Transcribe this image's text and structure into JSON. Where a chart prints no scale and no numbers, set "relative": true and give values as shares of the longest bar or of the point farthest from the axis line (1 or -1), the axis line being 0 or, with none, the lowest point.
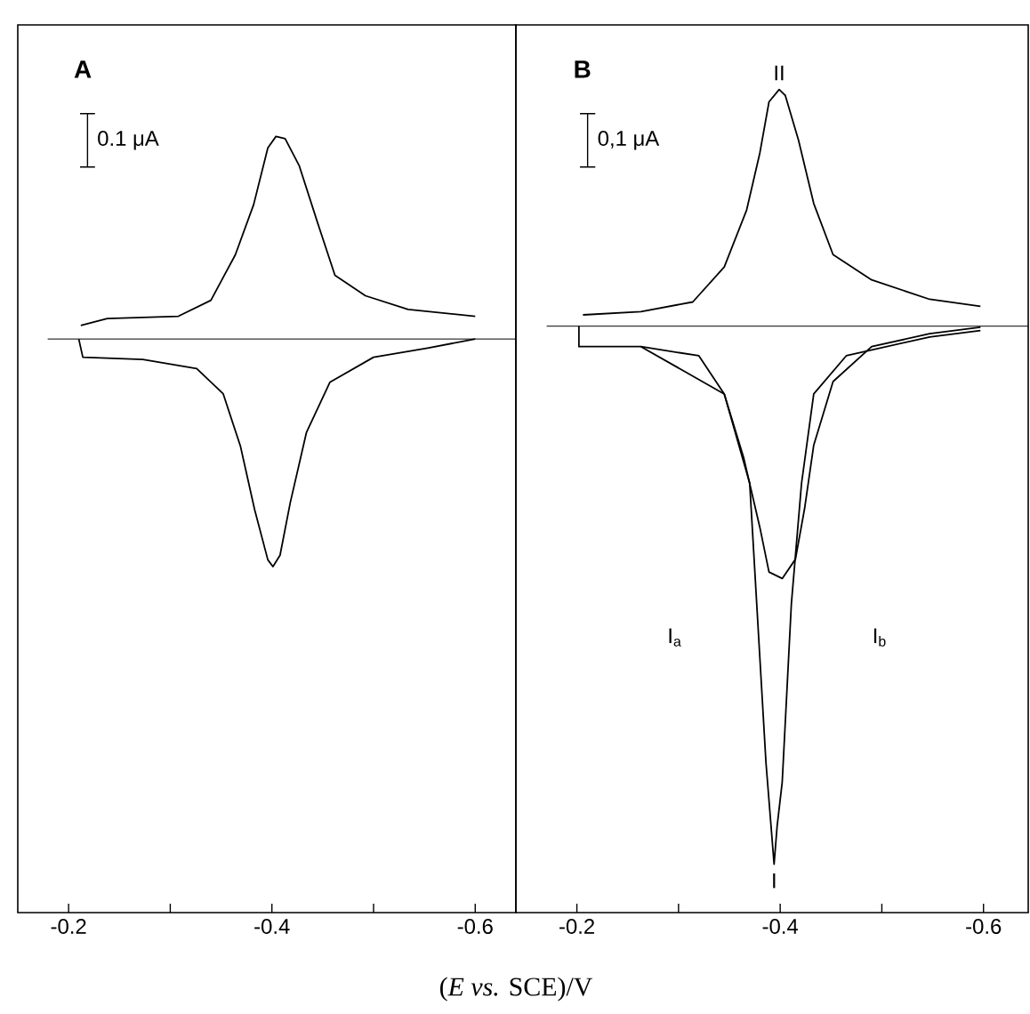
{
  "chart_data": [
    {
      "type": "line",
      "relative": true,
      "xlabel": "(*E vs.* SCE)/V",
      "xlim": [
        -0.15,
        -0.64
      ],
      "xticks": [
        -0.2,
        -0.4,
        -0.6
      ],
      "series": [
        {
          "color": "#000000",
          "x": [
            -0.6,
            -0.534,
            -0.492,
            -0.462,
            -0.445,
            -0.427,
            -0.413,
            -0.404,
            -0.396,
            -0.382,
            -0.364,
            -0.34,
            -0.308,
            -0.238,
            -0.212
          ],
          "values": [
            0.1,
            0.13,
            0.19,
            0.28,
            0.51,
            0.76,
            0.88,
            0.89,
            0.84,
            0.59,
            0.37,
            0.17,
            0.1,
            0.09,
            0.06
          ]
        },
        {
          "color": "#000000",
          "x": [
            -0.21,
            -0.214,
            -0.273,
            -0.326,
            -0.352,
            -0.369,
            -0.383,
            -0.396,
            -0.401,
            -0.408,
            -0.418,
            -0.434,
            -0.457,
            -0.5,
            -0.553,
            -0.6
          ],
          "values": [
            0,
            -0.08,
            -0.09,
            -0.13,
            -0.24,
            -0.47,
            -0.75,
            -0.97,
            -1.0,
            -0.95,
            -0.72,
            -0.41,
            -0.19,
            -0.08,
            -0.04,
            0
          ]
        }
      ],
      "ref_lines": [
        {
          "axis": "y",
          "value": 0
        }
      ],
      "annotations": [
        "A",
        "0.1 μA"
      ]
    },
    {
      "type": "line",
      "relative": true,
      "xlim": [
        -0.14,
        -0.644
      ],
      "xticks": [
        -0.2,
        -0.4,
        -0.6
      ],
      "series": [
        {
          "color": "#000000",
          "x": [
            -0.597,
            -0.547,
            -0.49,
            -0.452,
            -0.433,
            -0.418,
            -0.405,
            -0.399,
            -0.389,
            -0.38,
            -0.367,
            -0.345,
            -0.314,
            -0.263,
            -0.206
          ],
          "values": [
            0.037,
            0.05,
            0.086,
            0.133,
            0.228,
            0.346,
            0.429,
            0.44,
            0.417,
            0.322,
            0.216,
            0.11,
            0.045,
            0.027,
            0.021
          ]
        },
        {
          "color": "#000000",
          "x": [
            -0.202,
            -0.202,
            -0.263,
            -0.32,
            -0.345,
            -0.364,
            -0.38,
            -0.389,
            -0.402,
            -0.415,
            -0.424,
            -0.433,
            -0.452,
            -0.49,
            -0.547,
            -0.597
          ],
          "values": [
            0,
            -0.038,
            -0.038,
            -0.055,
            -0.126,
            -0.244,
            -0.374,
            -0.457,
            -0.469,
            -0.433,
            -0.339,
            -0.221,
            -0.103,
            -0.038,
            -0.014,
            -0.002
          ]
        },
        {
          "color": "#000000",
          "x": [
            -0.263,
            -0.345,
            -0.37,
            -0.386,
            -0.394,
            -0.397,
            -0.402,
            -0.411,
            -0.421,
            -0.433,
            -0.465,
            -0.547,
            -0.597
          ],
          "values": [
            -0.038,
            -0.126,
            -0.292,
            -0.811,
            -1.0,
            -0.929,
            -0.847,
            -0.516,
            -0.292,
            -0.126,
            -0.055,
            -0.02,
            -0.008
          ]
        }
      ],
      "ref_lines": [
        {
          "axis": "y",
          "value": 0
        }
      ],
      "annotations": [
        "B",
        "0,1 μA",
        {
          "text": "II",
          "x": -0.399,
          "y": 0.44
        },
        {
          "text": "I",
          "x": -0.394,
          "y": -1.0
        },
        "I$_{a}$",
        "I$_{b}$"
      ]
    }
  ]
}
